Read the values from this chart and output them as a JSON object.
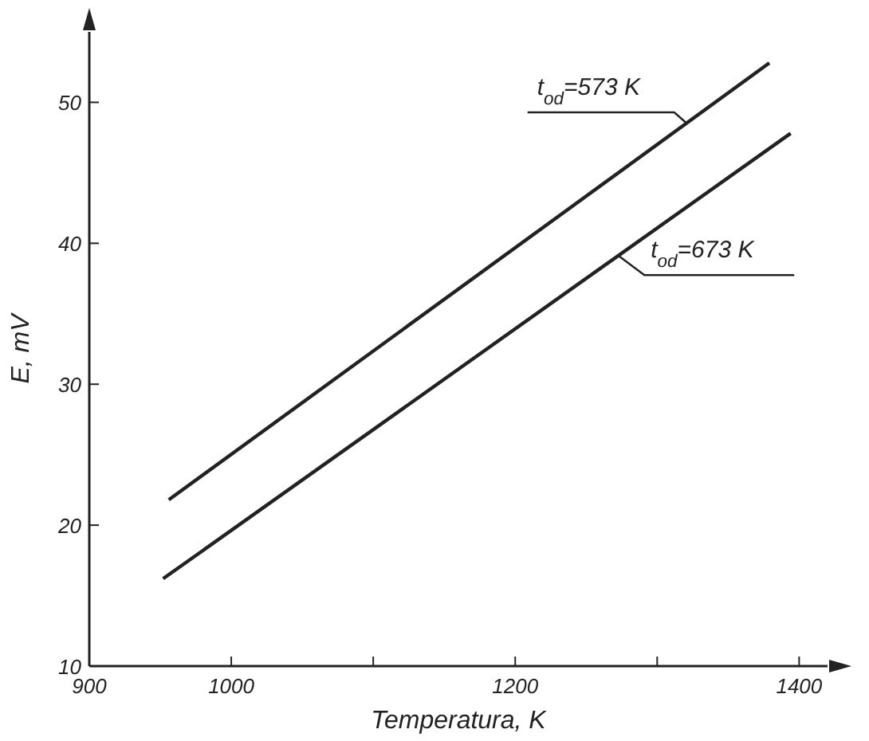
{
  "chart_data": {
    "type": "line",
    "xlabel": "Temperatura, K",
    "ylabel": "E, mV",
    "xlim": [
      900,
      1420
    ],
    "ylim": [
      10,
      55
    ],
    "xticks": [
      900,
      1000,
      {
        "value": 1100,
        "label": null
      },
      1200,
      {
        "value": 1300,
        "label": null
      },
      1400
    ],
    "yticks": [
      10,
      20,
      30,
      40,
      50
    ],
    "grid": false,
    "marker": "none",
    "line_style": "solid",
    "series": [
      {
        "color": "#222222",
        "x": [
          956,
          1379
        ],
        "values": [
          21.8,
          52.8
        ]
      },
      {
        "color": "#222222",
        "x": [
          952,
          1394
        ],
        "values": [
          16.2,
          47.8
        ]
      }
    ],
    "annotations": [
      {
        "text": "t$_{od}$=573 K",
        "x": 1321,
        "y": 48.5
      },
      {
        "text": "t$_{od}$=673 K",
        "x": 1273,
        "y": 39.1
      }
    ]
  }
}
